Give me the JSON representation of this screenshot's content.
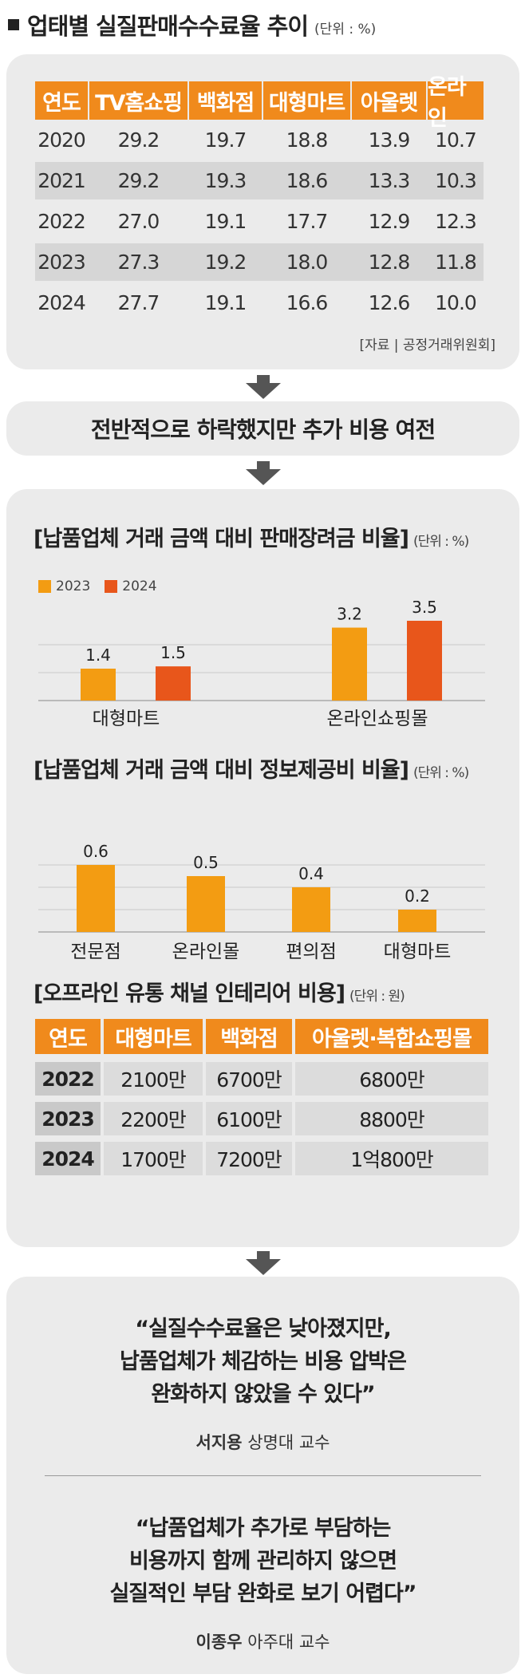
{
  "header": {
    "title": "업태별 실질판매수수료율 추이",
    "unit": "(단위 : %)"
  },
  "table1": {
    "columns": [
      "연도",
      "TV홈쇼핑",
      "백화점",
      "대형마트",
      "아울렛",
      "온라인"
    ],
    "rows": [
      [
        "2020",
        "29.2",
        "19.7",
        "18.8",
        "13.9",
        "10.7"
      ],
      [
        "2021",
        "29.2",
        "19.3",
        "18.6",
        "13.3",
        "10.3"
      ],
      [
        "2022",
        "27.0",
        "19.1",
        "17.7",
        "12.9",
        "12.3"
      ],
      [
        "2023",
        "27.3",
        "19.2",
        "18.0",
        "12.8",
        "11.8"
      ],
      [
        "2024",
        "27.7",
        "19.1",
        "16.6",
        "12.6",
        "10.0"
      ]
    ],
    "source": "[자료 | 공정거래위원회]"
  },
  "summary": "전반적으로 하락했지만 추가 비용 여전",
  "section2": {
    "title": "[납품업체 거래 금액 대비 판매장려금 비율]",
    "unit": "(단위 : %)"
  },
  "section3": {
    "title": "[납품업체 거래 금액 대비 정보제공비 비율]",
    "unit": "(단위 : %)"
  },
  "section4": {
    "title": "[오프라인 유통 채널 인테리어 비용]",
    "unit": "(단위 : 원)"
  },
  "colors": {
    "accent": "#f08a1c",
    "year2023": "#f39c12",
    "year2024": "#e8561b",
    "panel": "#ebebeb"
  },
  "chart_data": [
    {
      "type": "bar",
      "title": "[납품업체 거래 금액 대비 판매장려금 비율]",
      "categories": [
        "대형마트",
        "온라인쇼핑몰"
      ],
      "series": [
        {
          "name": "2023",
          "values": [
            1.4,
            3.2
          ]
        },
        {
          "name": "2024",
          "values": [
            1.5,
            3.5
          ]
        }
      ],
      "ylim": [
        0,
        3.5
      ],
      "grid": true,
      "legend": "top-left"
    },
    {
      "type": "bar",
      "title": "[납품업체 거래 금액 대비 정보제공비 비율]",
      "categories": [
        "전문점",
        "온라인몰",
        "편의점",
        "대형마트"
      ],
      "values": [
        0.6,
        0.5,
        0.4,
        0.2
      ],
      "ylim": [
        0,
        0.6
      ],
      "grid": true
    },
    {
      "type": "table",
      "title": "[오프라인 유통 채널 인테리어 비용]",
      "columns": [
        "연도",
        "대형마트",
        "백화점",
        "아울렛·복합쇼핑몰"
      ],
      "rows": [
        [
          "2022",
          "2100만",
          "6700만",
          "6800만"
        ],
        [
          "2023",
          "2200만",
          "6100만",
          "8800만"
        ],
        [
          "2024",
          "1700만",
          "7200만",
          "1억800만"
        ]
      ]
    }
  ],
  "quotes": [
    {
      "lines": [
        "“실질수수료율은 낮아졌지만,",
        "납품업체가 체감하는 비용 압박은",
        "완화하지 않았을 수 있다”"
      ],
      "name": "서지용",
      "affiliation": "상명대 교수"
    },
    {
      "lines": [
        "“납품업체가 추가로 부담하는",
        "비용까지 함께 관리하지 않으면",
        "실질적인 부담 완화로 보기 어렵다”"
      ],
      "name": "이종우",
      "affiliation": "아주대 교수"
    }
  ]
}
